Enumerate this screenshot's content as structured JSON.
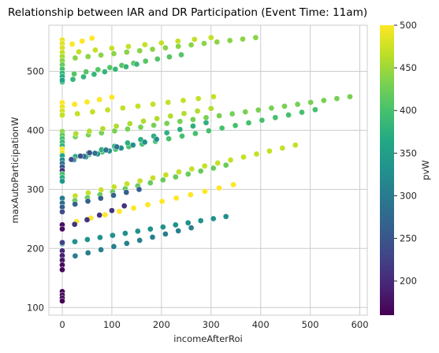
{
  "chart_data": {
    "type": "scatter",
    "title": "Relationship between IAR and DR Participation (Event Time: 11am)",
    "xlabel": "incomeAfterRoi",
    "ylabel": "maxAutoParticipationW",
    "xlim": [
      -27,
      615
    ],
    "ylim": [
      87,
      578
    ],
    "xticks": [
      0,
      100,
      200,
      300,
      400,
      500,
      600
    ],
    "yticks": [
      100,
      200,
      300,
      400,
      500
    ],
    "grid": true,
    "colormap": "viridis",
    "colorbar": {
      "label": "pvW",
      "range": [
        160,
        500
      ],
      "ticks": [
        200,
        250,
        300,
        350,
        400,
        450,
        500
      ]
    },
    "marker_edge_color": "#ffffff",
    "series": [
      {
        "pvW": 500,
        "x_start": 0,
        "x_end": 60,
        "y_start": 541,
        "y_end": 556,
        "n": 4
      },
      {
        "pvW": 470,
        "x_start": 0,
        "x_end": 300,
        "y_start": 530,
        "y_end": 557,
        "n": 10
      },
      {
        "pvW": 440,
        "x_start": 0,
        "x_end": 390,
        "y_start": 520,
        "y_end": 557,
        "n": 16
      },
      {
        "pvW": 410,
        "x_start": 0,
        "x_end": 240,
        "y_start": 492,
        "y_end": 528,
        "n": 11
      },
      {
        "pvW": 385,
        "x_start": 0,
        "x_end": 150,
        "y_start": 482,
        "y_end": 512,
        "n": 8
      },
      {
        "pvW": 500,
        "x_start": 0,
        "x_end": 100,
        "y_start": 440,
        "y_end": 456,
        "n": 5
      },
      {
        "pvW": 470,
        "x_start": 0,
        "x_end": 305,
        "y_start": 425,
        "y_end": 457,
        "n": 11
      },
      {
        "pvW": 430,
        "x_start": 0,
        "x_end": 580,
        "y_start": 386,
        "y_end": 457,
        "n": 23
      },
      {
        "pvW": 460,
        "x_start": 0,
        "x_end": 300,
        "y_start": 390,
        "y_end": 437,
        "n": 12
      },
      {
        "pvW": 400,
        "x_start": 0,
        "x_end": 510,
        "y_start": 350,
        "y_end": 435,
        "n": 20
      },
      {
        "pvW": 375,
        "x_start": 0,
        "x_end": 290,
        "y_start": 350,
        "y_end": 413,
        "n": 12
      },
      {
        "pvW": 330,
        "x_start": 0,
        "x_end": 190,
        "y_start": 345,
        "y_end": 385,
        "n": 9
      },
      {
        "pvW": 290,
        "x_start": 0,
        "x_end": 110,
        "y_start": 345,
        "y_end": 372,
        "n": 6
      },
      {
        "pvW": 245,
        "x_start": 0,
        "x_end": 55,
        "y_start": 345,
        "y_end": 362,
        "n": 4
      },
      {
        "pvW": 470,
        "x_start": 0,
        "x_end": 470,
        "y_start": 284,
        "y_end": 375,
        "n": 19
      },
      {
        "pvW": 420,
        "x_start": 0,
        "x_end": 330,
        "y_start": 276,
        "y_end": 341,
        "n": 14
      },
      {
        "pvW": 500,
        "x_start": 0,
        "x_end": 345,
        "y_start": 240,
        "y_end": 308,
        "n": 13
      },
      {
        "pvW": 330,
        "x_start": 0,
        "x_end": 330,
        "y_start": 208,
        "y_end": 254,
        "n": 14
      },
      {
        "pvW": 305,
        "x_start": 0,
        "x_end": 260,
        "y_start": 182,
        "y_end": 235,
        "n": 11
      },
      {
        "pvW": 265,
        "x_start": 0,
        "x_end": 155,
        "y_start": 270,
        "y_end": 300,
        "n": 7
      },
      {
        "pvW": 210,
        "x_start": 0,
        "x_end": 125,
        "y_start": 233,
        "y_end": 272,
        "n": 6
      }
    ],
    "x0_column": [
      {
        "pvW": 490,
        "y": 553
      },
      {
        "pvW": 485,
        "y": 547
      },
      {
        "pvW": 480,
        "y": 540
      },
      {
        "pvW": 470,
        "y": 532
      },
      {
        "pvW": 455,
        "y": 525
      },
      {
        "pvW": 440,
        "y": 518
      },
      {
        "pvW": 420,
        "y": 511
      },
      {
        "pvW": 400,
        "y": 504
      },
      {
        "pvW": 385,
        "y": 497
      },
      {
        "pvW": 370,
        "y": 491
      },
      {
        "pvW": 355,
        "y": 485
      },
      {
        "pvW": 500,
        "y": 447
      },
      {
        "pvW": 490,
        "y": 440
      },
      {
        "pvW": 480,
        "y": 433
      },
      {
        "pvW": 470,
        "y": 426
      },
      {
        "pvW": 440,
        "y": 398
      },
      {
        "pvW": 420,
        "y": 392
      },
      {
        "pvW": 400,
        "y": 386
      },
      {
        "pvW": 390,
        "y": 380
      },
      {
        "pvW": 380,
        "y": 374
      },
      {
        "pvW": 500,
        "y": 368
      },
      {
        "pvW": 490,
        "y": 362
      },
      {
        "pvW": 360,
        "y": 357
      },
      {
        "pvW": 320,
        "y": 350
      },
      {
        "pvW": 290,
        "y": 344
      },
      {
        "pvW": 250,
        "y": 338
      },
      {
        "pvW": 210,
        "y": 332
      },
      {
        "pvW": 400,
        "y": 326
      },
      {
        "pvW": 370,
        "y": 320
      },
      {
        "pvW": 340,
        "y": 314
      },
      {
        "pvW": 300,
        "y": 285
      },
      {
        "pvW": 280,
        "y": 277
      },
      {
        "pvW": 260,
        "y": 270
      },
      {
        "pvW": 240,
        "y": 262
      },
      {
        "pvW": 175,
        "y": 240
      },
      {
        "pvW": 170,
        "y": 233
      },
      {
        "pvW": 225,
        "y": 210
      },
      {
        "pvW": 200,
        "y": 196
      },
      {
        "pvW": 190,
        "y": 188
      },
      {
        "pvW": 180,
        "y": 180
      },
      {
        "pvW": 170,
        "y": 172
      },
      {
        "pvW": 165,
        "y": 164
      },
      {
        "pvW": 165,
        "y": 127
      },
      {
        "pvW": 165,
        "y": 121
      },
      {
        "pvW": 165,
        "y": 116
      },
      {
        "pvW": 160,
        "y": 111
      }
    ]
  }
}
